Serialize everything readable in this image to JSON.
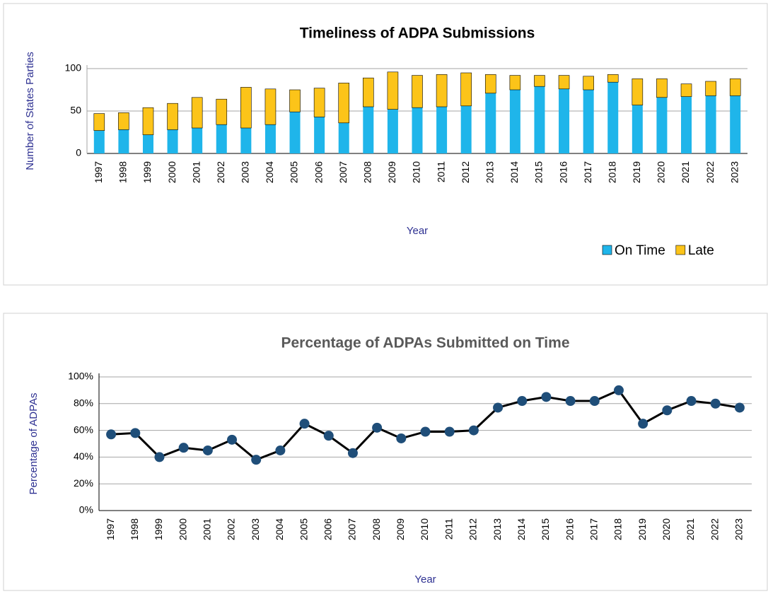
{
  "chart_data": [
    {
      "type": "bar",
      "stacked": true,
      "title": "Timeliness of ADPA Submissions",
      "x_label": "Year",
      "y_label": "Number of States Parties",
      "categories": [
        "1997",
        "1998",
        "1999",
        "2000",
        "2001",
        "2002",
        "2003",
        "2004",
        "2005",
        "2006",
        "2007",
        "2008",
        "2009",
        "2010",
        "2011",
        "2012",
        "2013",
        "2014",
        "2015",
        "2016",
        "2017",
        "2018",
        "2019",
        "2020",
        "2021",
        "2022",
        "2023"
      ],
      "series": [
        {
          "name": "On Time",
          "color": "#1fb5ea",
          "values": [
            27,
            28,
            22,
            28,
            30,
            34,
            30,
            34,
            49,
            43,
            36,
            55,
            52,
            54,
            55,
            56,
            71,
            75,
            79,
            76,
            75,
            84,
            57,
            66,
            67,
            68,
            68
          ]
        },
        {
          "name": "Late",
          "color": "#fcc419",
          "values": [
            20,
            20,
            32,
            31,
            36,
            30,
            48,
            42,
            26,
            34,
            47,
            34,
            44,
            38,
            38,
            39,
            22,
            17,
            13,
            16,
            16,
            9,
            31,
            22,
            15,
            17,
            20
          ]
        }
      ],
      "ylim": [
        0,
        100
      ],
      "yticks": [
        0,
        50,
        100
      ],
      "grid": true,
      "legend": "bottom-right"
    },
    {
      "type": "line",
      "title": "Percentage of ADPAs Submitted on Time",
      "x_label": "Year",
      "y_label": "Percentage of ADPAs",
      "categories": [
        "1997",
        "1998",
        "1999",
        "2000",
        "2001",
        "2002",
        "2003",
        "2004",
        "2005",
        "2006",
        "2007",
        "2008",
        "2009",
        "2010",
        "2011",
        "2012",
        "2013",
        "2014",
        "2015",
        "2016",
        "2017",
        "2018",
        "2019",
        "2020",
        "2021",
        "2022",
        "2023"
      ],
      "values": [
        57,
        58,
        40,
        47,
        45,
        53,
        38,
        45,
        65,
        56,
        43,
        62,
        54,
        59,
        59,
        60,
        77,
        82,
        85,
        82,
        82,
        90,
        65,
        75,
        82,
        80,
        77
      ],
      "color": "#1f4e79",
      "ylim": [
        0,
        100
      ],
      "yticks": [
        {
          "value": 0,
          "label": "0%"
        },
        {
          "value": 20,
          "label": "20%"
        },
        {
          "value": 40,
          "label": "40%"
        },
        {
          "value": 60,
          "label": "60%"
        },
        {
          "value": 80,
          "label": "80%"
        },
        {
          "value": 100,
          "label": "100%"
        }
      ],
      "grid": true
    }
  ]
}
